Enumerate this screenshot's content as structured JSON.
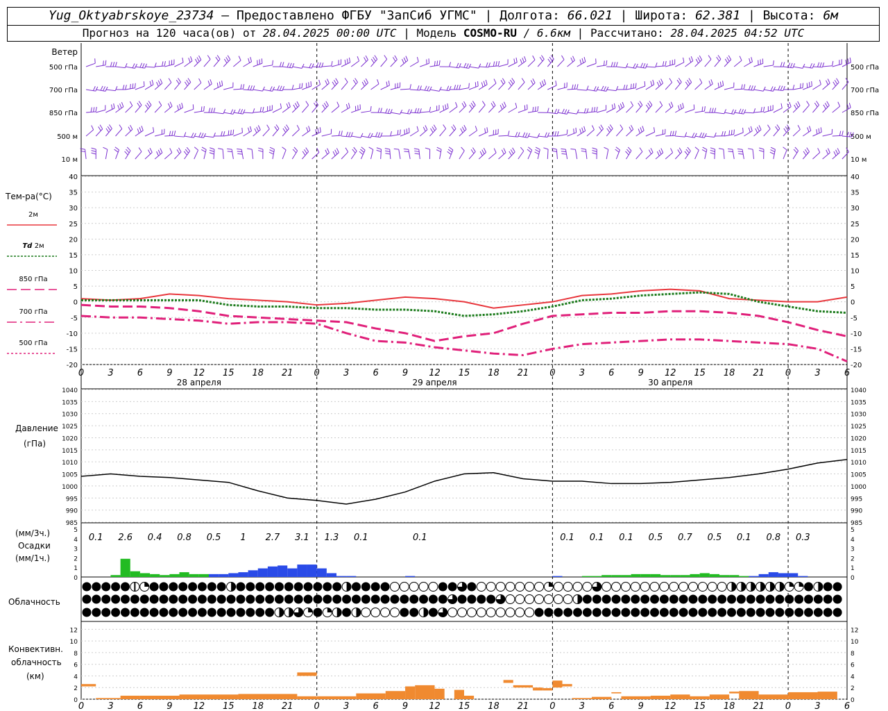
{
  "header": {
    "station": "Yug_Oktyabrskoye_23734",
    "provided_by": "Предоставлено ФГБУ \"ЗапСиб УГМС\"",
    "lon_label": "Долгота:",
    "lon": "66.021",
    "lat_label": "Широта:",
    "lat": "62.381",
    "alt_label": "Высота:",
    "alt": "6м",
    "forecast_label": "Прогноз на 120 часа(ов) от",
    "forecast_from": "28.04.2025 00:00 UTC",
    "model_label": "Модель",
    "model": "COSMO-RU",
    "resolution": "/ 6.6км",
    "computed_label": "Рассчитано:",
    "computed": "28.04.2025 04:52 UTC"
  },
  "hour_ticks": [
    "0",
    "3",
    "6",
    "9",
    "12",
    "15",
    "18",
    "21",
    "0",
    "3",
    "6",
    "9",
    "12",
    "15",
    "18",
    "21",
    "0",
    "3",
    "6",
    "9",
    "12",
    "15",
    "18",
    "21",
    "0",
    "3",
    "6"
  ],
  "day_labels": [
    "28 апреля",
    "29 апреля",
    "30 апреля"
  ],
  "wind_panel": {
    "title": "Ветер",
    "levels": [
      "500 гПа",
      "700 гПа",
      "850 гПа",
      "500 м",
      "10 м"
    ],
    "color": "#7b2fd0"
  },
  "chart_data": [
    {
      "type": "line",
      "title": "Тем-ра(°C)",
      "x_unit": "hours from 28.04.2025 00:00 UTC",
      "ylim": [
        -20,
        40
      ],
      "yticks": [
        "40",
        "35",
        "30",
        "25",
        "20",
        "15",
        "10",
        "5",
        "0",
        "-5",
        "-10",
        "-15",
        "-20"
      ],
      "series": [
        {
          "name": "2м",
          "color": "#e8363c",
          "style": "solid",
          "x": [
            0,
            3,
            6,
            9,
            12,
            15,
            18,
            21,
            24,
            27,
            30,
            33,
            36,
            39,
            42,
            45,
            48,
            51,
            54,
            57,
            60,
            63,
            66,
            69,
            72,
            75,
            78
          ],
          "values": [
            1,
            0.5,
            1,
            2.5,
            2,
            1,
            0.5,
            0,
            -1,
            -0.5,
            0.5,
            1.5,
            1,
            0,
            -2,
            -1,
            0,
            2,
            2.5,
            3.5,
            4,
            3.5,
            1,
            0.5,
            0,
            0,
            1.5
          ]
        },
        {
          "name": "Td 2м",
          "color": "#1a7a1a",
          "style": "dotted",
          "x": [
            0,
            3,
            6,
            9,
            12,
            15,
            18,
            21,
            24,
            27,
            30,
            33,
            36,
            39,
            42,
            45,
            48,
            51,
            54,
            57,
            60,
            63,
            66,
            69,
            72,
            75,
            78
          ],
          "values": [
            0.5,
            0.5,
            0.5,
            0.5,
            0.5,
            -1,
            -1.5,
            -1.5,
            -2,
            -2,
            -2.5,
            -2.5,
            -3,
            -4.5,
            -4,
            -3,
            -1.5,
            0.5,
            1,
            2,
            2.5,
            3,
            2.5,
            0,
            -1.5,
            -3,
            -3.5
          ]
        },
        {
          "name": "850 гПа",
          "color": "#e0207a",
          "style": "dash",
          "x": [
            0,
            3,
            6,
            9,
            12,
            15,
            18,
            21,
            24,
            27,
            30,
            33,
            36,
            39,
            42,
            45,
            48,
            51,
            54,
            57,
            60,
            63,
            66,
            69,
            72,
            75,
            78
          ],
          "values": [
            -1,
            -1.5,
            -1.5,
            -2,
            -3,
            -4.5,
            -5,
            -5.5,
            -6,
            -6.5,
            -8.5,
            -10,
            -12.5,
            -11,
            -10,
            -7,
            -4.5,
            -4,
            -3.5,
            -3.5,
            -3,
            -3,
            -3.5,
            -4.5,
            -6.5,
            -9,
            -11
          ]
        },
        {
          "name": "700 гПа",
          "color": "#e0207a",
          "style": "dashdot",
          "x": [
            0,
            3,
            6,
            9,
            12,
            15,
            18,
            21,
            24,
            27,
            30,
            33,
            36,
            39,
            42,
            45,
            48,
            51,
            54,
            57,
            60,
            63,
            66,
            69,
            72,
            75,
            78
          ],
          "values": [
            -4.5,
            -5,
            -5,
            -5.5,
            -6,
            -7,
            -6.5,
            -6.5,
            -7,
            -10,
            -12.5,
            -13,
            -14.5,
            -15.5,
            -16.5,
            -17,
            -15,
            -13.5,
            -13,
            -12.5,
            -12,
            -12,
            -12.5,
            -13,
            -13.5,
            -15,
            -19
          ]
        }
      ]
    },
    {
      "type": "line",
      "title": "Давление",
      "ylabel": "(гПа)",
      "x_unit": "hours from 28.04.2025 00:00 UTC",
      "ylim": [
        985,
        1040
      ],
      "yticks": [
        "1040",
        "1035",
        "1030",
        "1025",
        "1020",
        "1015",
        "1010",
        "1005",
        "1000",
        "995",
        "990",
        "985"
      ],
      "series": [
        {
          "color": "#000000",
          "x": [
            0,
            3,
            6,
            9,
            12,
            15,
            18,
            21,
            24,
            27,
            30,
            33,
            36,
            39,
            42,
            45,
            48,
            51,
            54,
            57,
            60,
            63,
            66,
            69,
            72,
            75,
            78
          ],
          "values": [
            1004,
            1005,
            1004,
            1003.5,
            1002.5,
            1001.5,
            998,
            995,
            994,
            992.5,
            994.5,
            997.5,
            1002,
            1005,
            1005.5,
            1003,
            1002,
            1002,
            1001,
            1001,
            1001.5,
            1002.5,
            1003.5,
            1005,
            1007,
            1009.5,
            1011
          ]
        }
      ]
    },
    {
      "type": "bar",
      "title": "Осадки",
      "ylabel_3h": "(мм/3ч.)",
      "ylabel_1h": "(мм/1ч.)",
      "ylim": [
        0,
        5
      ],
      "yticks": [
        "5",
        "4",
        "3",
        "2",
        "1",
        "0"
      ],
      "totals_3h": [
        "0.1",
        "2.6",
        "0.4",
        "0.8",
        "0.5",
        "1",
        "2.7",
        "3.1",
        "1.3",
        "0.1",
        "",
        "0.1",
        "",
        "",
        "",
        "",
        "0.1",
        "0.1",
        "0.1",
        "0.5",
        "0.7",
        "0.5",
        "0.1",
        "0.8",
        "0.3",
        "",
        ""
      ],
      "hourly": {
        "x": [
          3,
          4,
          5,
          6,
          7,
          8,
          9,
          10,
          11,
          12,
          13,
          14,
          15,
          16,
          17,
          18,
          19,
          20,
          21,
          22,
          23,
          24,
          25,
          26,
          27,
          33,
          48,
          51,
          52,
          53,
          54,
          55,
          56,
          57,
          58,
          59,
          60,
          61,
          62,
          63,
          64,
          65,
          66,
          67,
          68,
          69,
          70,
          71,
          72,
          73
        ],
        "values": [
          0.2,
          1.9,
          0.6,
          0.4,
          0.3,
          0.2,
          0.3,
          0.5,
          0.3,
          0.3,
          0.3,
          0.3,
          0.4,
          0.5,
          0.7,
          0.9,
          1.1,
          1.2,
          0.9,
          1.3,
          1.3,
          0.9,
          0.4,
          0.1,
          0.1,
          0.1,
          0.1,
          0.1,
          0.1,
          0.2,
          0.2,
          0.2,
          0.3,
          0.3,
          0.3,
          0.2,
          0.2,
          0.2,
          0.3,
          0.4,
          0.3,
          0.2,
          0.2,
          0.1,
          0.1,
          0.3,
          0.5,
          0.4,
          0.4,
          0.1
        ],
        "kinds": [
          "g",
          "g",
          "g",
          "g",
          "g",
          "g",
          "g",
          "g",
          "g",
          "g",
          "b",
          "b",
          "b",
          "b",
          "b",
          "b",
          "b",
          "b",
          "b",
          "b",
          "b",
          "b",
          "b",
          "b",
          "b",
          "b",
          "b",
          "g",
          "g",
          "g",
          "g",
          "g",
          "g",
          "g",
          "g",
          "g",
          "g",
          "g",
          "g",
          "g",
          "g",
          "g",
          "g",
          "g",
          "b",
          "b",
          "b",
          "b",
          "b",
          "b"
        ]
      },
      "colors": {
        "g": "#22bb22",
        "b": "#2a4be8"
      }
    },
    {
      "type": "bar",
      "title": "Конвективн. облачность",
      "ylabel": "(км)",
      "ylim": [
        0,
        13
      ],
      "yticks": [
        "12",
        "10",
        "8",
        "6",
        "4",
        "2",
        "0"
      ],
      "color": "#f08a30",
      "segments": [
        {
          "x0": 0,
          "x1": 1.5,
          "lo": 2.2,
          "hi": 2.6
        },
        {
          "x0": 1.5,
          "x1": 4,
          "lo": 0,
          "hi": 0.2
        },
        {
          "x0": 4,
          "x1": 6,
          "lo": 0,
          "hi": 0.6
        },
        {
          "x0": 6,
          "x1": 10,
          "lo": 0,
          "hi": 0.6
        },
        {
          "x0": 10,
          "x1": 16,
          "lo": 0,
          "hi": 0.8
        },
        {
          "x0": 16,
          "x1": 22,
          "lo": 0,
          "hi": 0.9
        },
        {
          "x0": 22,
          "x1": 24,
          "lo": 0,
          "hi": 0.5
        },
        {
          "x0": 22,
          "x1": 24,
          "lo": 4,
          "hi": 4.6
        },
        {
          "x0": 24,
          "x1": 28,
          "lo": 0,
          "hi": 0.5
        },
        {
          "x0": 28,
          "x1": 31,
          "lo": 0,
          "hi": 1
        },
        {
          "x0": 31,
          "x1": 33,
          "lo": 0,
          "hi": 1.4
        },
        {
          "x0": 33,
          "x1": 34,
          "lo": 0,
          "hi": 2.2
        },
        {
          "x0": 34,
          "x1": 36,
          "lo": 0,
          "hi": 2.4
        },
        {
          "x0": 36,
          "x1": 37,
          "lo": 0,
          "hi": 1.8
        },
        {
          "x0": 38,
          "x1": 39,
          "lo": 0,
          "hi": 1.6
        },
        {
          "x0": 39,
          "x1": 40,
          "lo": 0,
          "hi": 0.6
        },
        {
          "x0": 43,
          "x1": 44,
          "lo": 2.8,
          "hi": 3.3
        },
        {
          "x0": 44,
          "x1": 46,
          "lo": 2,
          "hi": 2.4
        },
        {
          "x0": 46,
          "x1": 47,
          "lo": 1.5,
          "hi": 2
        },
        {
          "x0": 47,
          "x1": 48,
          "lo": 1.5,
          "hi": 1.9
        },
        {
          "x0": 48,
          "x1": 49,
          "lo": 2,
          "hi": 3.2
        },
        {
          "x0": 49,
          "x1": 50,
          "lo": 2.2,
          "hi": 2.6
        },
        {
          "x0": 50,
          "x1": 52,
          "lo": 0,
          "hi": 0.2
        },
        {
          "x0": 52,
          "x1": 54,
          "lo": 0,
          "hi": 0.4
        },
        {
          "x0": 54,
          "x1": 55,
          "lo": 1,
          "hi": 1.2
        },
        {
          "x0": 55,
          "x1": 58,
          "lo": 0,
          "hi": 0.5
        },
        {
          "x0": 58,
          "x1": 60,
          "lo": 0,
          "hi": 0.6
        },
        {
          "x0": 60,
          "x1": 62,
          "lo": 0,
          "hi": 0.8
        },
        {
          "x0": 62,
          "x1": 64,
          "lo": 0,
          "hi": 0.5
        },
        {
          "x0": 64,
          "x1": 66,
          "lo": 0,
          "hi": 0.8
        },
        {
          "x0": 66,
          "x1": 67,
          "lo": 1,
          "hi": 1.3
        },
        {
          "x0": 67,
          "x1": 69,
          "lo": 0,
          "hi": 1.4
        },
        {
          "x0": 69,
          "x1": 72,
          "lo": 0,
          "hi": 0.8
        },
        {
          "x0": 72,
          "x1": 75,
          "lo": 0,
          "hi": 1.2
        },
        {
          "x0": 75,
          "x1": 77,
          "lo": 0,
          "hi": 1.3
        }
      ]
    }
  ],
  "temp_legend": [
    {
      "label": "2м",
      "italic": "",
      "color": "#e8363c",
      "style": "solid"
    },
    {
      "label": "2м",
      "italic": "Td",
      "color": "#1a7a1a",
      "style": "dotted"
    },
    {
      "label": "850 гПа",
      "italic": "",
      "color": "#e0207a",
      "style": "dash"
    },
    {
      "label": "700 гПа",
      "italic": "",
      "color": "#e0207a",
      "style": "dashdot"
    },
    {
      "label": "500 гПа",
      "italic": "",
      "color": "#e0207a",
      "style": "dot"
    }
  ],
  "cloud_panel": {
    "title": "Облачность",
    "rows": [
      "fffffbcffffffffhfffffffffffhffffeeeeeffpfeeeeeeeqeeeepeeeeeeeeeeeeehhhhhhqqfhffhhhffffqfqfhhhffpheeeeeeeeeeeeeeee",
      "ffffffffffffffffffffffffffffffffffffffpffffpeeeeeeehfffffffffffffffffffffffffffffffffffffffffffffffffffffffffffffee",
      "ffffffffffffffffffffhhpqfqhfheeeeffhfpeeeeeeeeefffffffffffffffffffffffffffffffffffffffffffffffffffffffffffffffffp"
    ]
  }
}
